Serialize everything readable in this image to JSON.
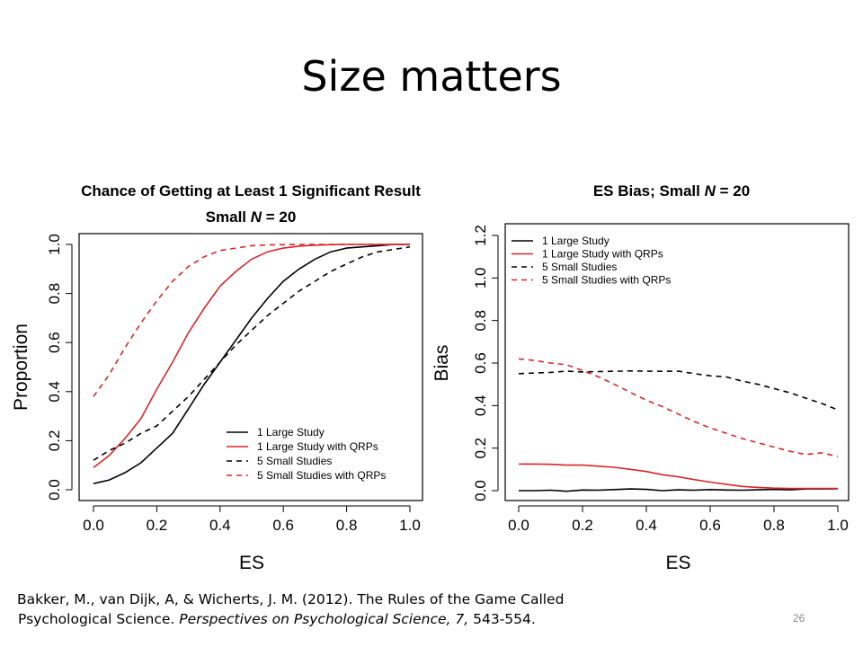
{
  "slide": {
    "title": "Size matters",
    "page_number": "26",
    "citation": {
      "line1": "Bakker, M., van Dijk, A, & Wicherts, J. M. (2012). The Rules of the Game Called",
      "line2_plain": "Psychological Science. ",
      "line2_italic": "Perspectives on Psychological Science, 7,",
      "line2_end": " 543-554."
    }
  },
  "chart_data": [
    {
      "type": "line",
      "title_line1": "Chance of Getting at Least 1 Significant Result",
      "title_line2_pre": "Small ",
      "title_line2_var": "N",
      "title_line2_post": " = 20",
      "xlabel": "ES",
      "ylabel": "Proportion",
      "xlim": [
        0,
        1
      ],
      "ylim": [
        0,
        1
      ],
      "xticks": [
        "0.0",
        "0.2",
        "0.4",
        "0.6",
        "0.8",
        "1.0"
      ],
      "yticks": [
        "0.0",
        "0.2",
        "0.4",
        "0.6",
        "0.8",
        "1.0"
      ],
      "legend_position": "bottom-right",
      "x": [
        0,
        0.05,
        0.1,
        0.15,
        0.2,
        0.25,
        0.3,
        0.35,
        0.4,
        0.45,
        0.5,
        0.55,
        0.6,
        0.65,
        0.7,
        0.75,
        0.8,
        0.85,
        0.9,
        0.95,
        1.0
      ],
      "series": [
        {
          "name": "1 Large Study",
          "color": "#000000",
          "dash": "solid",
          "values": [
            0.025,
            0.04,
            0.07,
            0.11,
            0.17,
            0.23,
            0.33,
            0.43,
            0.52,
            0.61,
            0.7,
            0.78,
            0.85,
            0.9,
            0.94,
            0.97,
            0.985,
            0.99,
            0.995,
            1.0,
            1.0
          ]
        },
        {
          "name": "1 Large Study with QRPs",
          "color": "#d7262b",
          "dash": "solid",
          "values": [
            0.09,
            0.14,
            0.21,
            0.29,
            0.41,
            0.52,
            0.64,
            0.74,
            0.83,
            0.89,
            0.94,
            0.97,
            0.985,
            0.993,
            0.997,
            0.999,
            1.0,
            1.0,
            1.0,
            1.0,
            1.0
          ]
        },
        {
          "name": "5 Small Studies",
          "color": "#000000",
          "dash": "dashed",
          "values": [
            0.12,
            0.16,
            0.19,
            0.23,
            0.26,
            0.32,
            0.38,
            0.45,
            0.52,
            0.59,
            0.65,
            0.71,
            0.76,
            0.81,
            0.85,
            0.89,
            0.92,
            0.95,
            0.97,
            0.98,
            0.99
          ]
        },
        {
          "name": "5 Small Studies with QRPs",
          "color": "#d7262b",
          "dash": "dashed",
          "values": [
            0.38,
            0.47,
            0.58,
            0.68,
            0.77,
            0.85,
            0.91,
            0.95,
            0.975,
            0.985,
            0.995,
            0.998,
            0.999,
            1.0,
            1.0,
            1.0,
            1.0,
            1.0,
            1.0,
            1.0,
            1.0
          ]
        }
      ]
    },
    {
      "type": "line",
      "title_line1_pre": "ES Bias; Small ",
      "title_line1_var": "N",
      "title_line1_post": " = 20",
      "xlabel": "ES",
      "ylabel": "Bias",
      "xlim": [
        0,
        1
      ],
      "ylim": [
        0,
        1.2
      ],
      "xticks": [
        "0.0",
        "0.2",
        "0.4",
        "0.6",
        "0.8",
        "1.0"
      ],
      "yticks": [
        "0.0",
        "0.2",
        "0.4",
        "0.6",
        "0.8",
        "1.0",
        "1.2"
      ],
      "legend_position": "top-left",
      "x": [
        0,
        0.05,
        0.1,
        0.15,
        0.2,
        0.25,
        0.3,
        0.35,
        0.4,
        0.45,
        0.5,
        0.55,
        0.6,
        0.65,
        0.7,
        0.75,
        0.8,
        0.85,
        0.9,
        0.95,
        1.0
      ],
      "series": [
        {
          "name": "1 Large Study",
          "color": "#000000",
          "dash": "solid",
          "values": [
            0.0,
            0.0,
            0.002,
            -0.003,
            0.003,
            0.002,
            0.005,
            0.008,
            0.006,
            0.0,
            0.004,
            0.002,
            0.005,
            0.003,
            0.002,
            0.004,
            0.006,
            0.004,
            0.008,
            0.008,
            0.009
          ]
        },
        {
          "name": "1 Large Study with QRPs",
          "color": "#d7262b",
          "dash": "solid",
          "values": [
            0.125,
            0.125,
            0.124,
            0.12,
            0.12,
            0.115,
            0.11,
            0.1,
            0.09,
            0.075,
            0.065,
            0.052,
            0.04,
            0.03,
            0.02,
            0.015,
            0.012,
            0.01,
            0.01,
            0.01,
            0.01
          ]
        },
        {
          "name": "5 Small Studies",
          "color": "#000000",
          "dash": "dashed",
          "values": [
            0.55,
            0.553,
            0.556,
            0.562,
            0.558,
            0.56,
            0.561,
            0.563,
            0.562,
            0.561,
            0.562,
            0.55,
            0.54,
            0.535,
            0.515,
            0.5,
            0.48,
            0.46,
            0.435,
            0.41,
            0.38
          ]
        },
        {
          "name": "5 Small Studies with QRPs",
          "color": "#d7262b",
          "dash": "dashed",
          "values": [
            0.62,
            0.612,
            0.6,
            0.592,
            0.565,
            0.535,
            0.5,
            0.462,
            0.425,
            0.395,
            0.36,
            0.325,
            0.295,
            0.27,
            0.245,
            0.225,
            0.205,
            0.185,
            0.17,
            0.178,
            0.16
          ]
        }
      ]
    }
  ]
}
